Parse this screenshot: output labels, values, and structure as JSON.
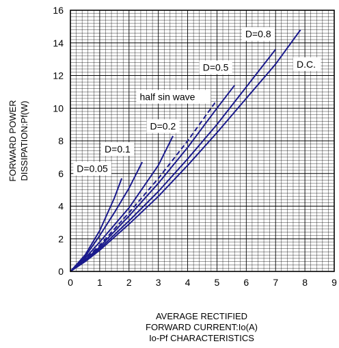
{
  "chart_data": {
    "type": "line",
    "title": "Io-Pf CHARACTERISTICS",
    "xlabel": [
      "AVERAGE RECTIFIED",
      "FORWARD CURRENT:Io(A)"
    ],
    "ylabel": [
      "FORWARD POWER",
      "DISSIPATION:Pf(W)"
    ],
    "xlim": [
      0,
      9
    ],
    "ylim": [
      0,
      16
    ],
    "x_ticks": [
      0,
      1,
      2,
      3,
      4,
      5,
      6,
      7,
      8,
      9
    ],
    "y_ticks": [
      0,
      2,
      4,
      6,
      8,
      10,
      12,
      14,
      16
    ],
    "grid": true,
    "line_color": "#1a1a8c",
    "series": [
      {
        "name": "D=0.05",
        "style": "solid",
        "x": [
          0,
          0.5,
          1.0,
          1.5,
          1.75
        ],
        "y": [
          0,
          1.0,
          2.5,
          4.5,
          5.7
        ]
      },
      {
        "name": "D=0.1",
        "style": "solid",
        "x": [
          0,
          0.5,
          1.0,
          1.5,
          2.0,
          2.45
        ],
        "y": [
          0,
          0.9,
          2.2,
          3.6,
          5.1,
          6.7
        ]
      },
      {
        "name": "D=0.2",
        "style": "solid",
        "x": [
          0,
          0.5,
          1.0,
          2.0,
          3.0,
          3.5
        ],
        "y": [
          0,
          0.8,
          1.8,
          3.9,
          6.5,
          8.3
        ]
      },
      {
        "name": "half sin wave",
        "style": "dashed",
        "x": [
          0,
          0.5,
          1.0,
          2.0,
          3.0,
          4.0,
          5.0
        ],
        "y": [
          0,
          0.75,
          1.6,
          3.6,
          5.7,
          8.0,
          10.5
        ]
      },
      {
        "name": "D=0.5",
        "style": "solid",
        "x": [
          0,
          0.5,
          1.0,
          2.0,
          3.0,
          4.0,
          5.0,
          5.6
        ],
        "y": [
          0,
          0.7,
          1.5,
          3.4,
          5.4,
          7.6,
          10.0,
          11.4
        ]
      },
      {
        "name": "D=0.8",
        "style": "solid",
        "x": [
          0,
          0.5,
          1.0,
          2.0,
          3.0,
          4.0,
          5.0,
          6.0,
          7.0
        ],
        "y": [
          0,
          0.65,
          1.4,
          3.1,
          4.9,
          6.9,
          9.0,
          11.3,
          13.6
        ]
      },
      {
        "name": "D.C.",
        "style": "solid",
        "x": [
          0,
          0.5,
          1.0,
          2.0,
          3.0,
          4.0,
          5.0,
          6.0,
          7.0,
          7.85
        ],
        "y": [
          0,
          0.6,
          1.3,
          2.9,
          4.6,
          6.5,
          8.5,
          10.6,
          12.7,
          14.8
        ]
      }
    ],
    "labels": [
      {
        "text": "D=0.05",
        "series": "D=0.05"
      },
      {
        "text": "D=0.1",
        "series": "D=0.1"
      },
      {
        "text": "D=0.2",
        "series": "D=0.2"
      },
      {
        "text": "half sin wave",
        "series": "half sin wave"
      },
      {
        "text": "D=0.5",
        "series": "D=0.5"
      },
      {
        "text": "D=0.8",
        "series": "D=0.8"
      },
      {
        "text": "D.C.",
        "series": "D.C."
      }
    ]
  }
}
